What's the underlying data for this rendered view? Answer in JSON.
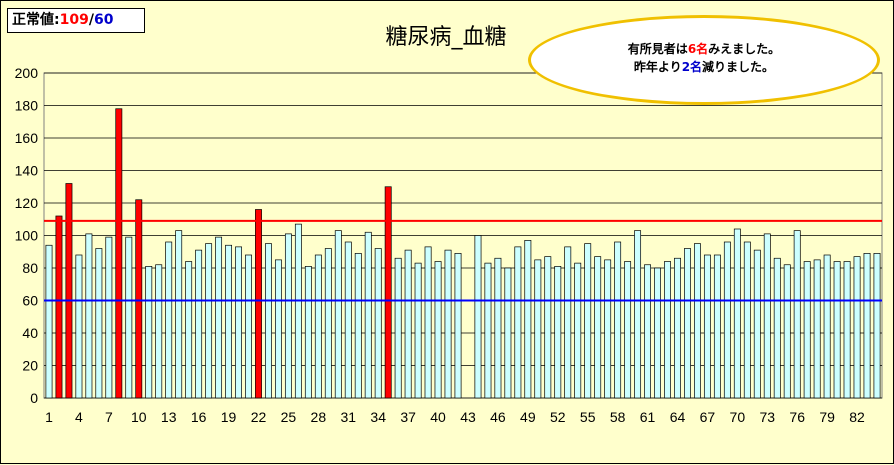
{
  "legend_box": {
    "label": "正常値:",
    "high": "109",
    "separator": "/",
    "low": "60"
  },
  "callout": {
    "line1_pre": "有所見者は",
    "line1_num": "6名",
    "line1_post": "みえました。",
    "line2_pre": "昨年より",
    "line2_num": "2名",
    "line2_post": "減りました。"
  },
  "colors": {
    "normal_bar": "#ccffff",
    "abnormal_bar": "#ff0000",
    "upper_line": "#ff0000",
    "lower_line": "#0000ff",
    "plot_bg": "#ffffcc"
  },
  "chart_data": {
    "type": "bar",
    "title": "糖尿病_血糖",
    "xlabel": "",
    "ylabel": "",
    "ylim": [
      0,
      200
    ],
    "y_ticks": [
      0,
      20,
      40,
      60,
      80,
      100,
      120,
      140,
      160,
      180,
      200
    ],
    "x_tick_labels": [
      "1",
      "4",
      "7",
      "10",
      "13",
      "16",
      "19",
      "22",
      "25",
      "28",
      "31",
      "34",
      "37",
      "40",
      "43",
      "46",
      "49",
      "52",
      "55",
      "58",
      "61",
      "64",
      "67",
      "70",
      "73",
      "76",
      "79",
      "82"
    ],
    "x": [
      1,
      2,
      3,
      4,
      5,
      6,
      7,
      8,
      9,
      10,
      11,
      12,
      13,
      14,
      15,
      16,
      17,
      18,
      19,
      20,
      21,
      22,
      23,
      24,
      25,
      26,
      27,
      28,
      29,
      30,
      31,
      32,
      33,
      34,
      35,
      36,
      37,
      38,
      39,
      40,
      41,
      42,
      43,
      44,
      45,
      46,
      47,
      48,
      49,
      50,
      51,
      52,
      53,
      54,
      55,
      56,
      57,
      58,
      59,
      60,
      61,
      62,
      63,
      64,
      65,
      66,
      67,
      68,
      69,
      70,
      71,
      72,
      73,
      74,
      75,
      76,
      77,
      78,
      79,
      80,
      81,
      82,
      83,
      84
    ],
    "values": [
      94,
      112,
      132,
      88,
      101,
      92,
      99,
      178,
      99,
      122,
      81,
      82,
      96,
      103,
      84,
      91,
      95,
      99,
      94,
      93,
      88,
      116,
      95,
      85,
      101,
      107,
      81,
      88,
      92,
      103,
      96,
      89,
      102,
      92,
      130,
      86,
      91,
      83,
      93,
      84,
      91,
      89,
      null,
      100,
      83,
      86,
      80,
      93,
      97,
      85,
      87,
      81,
      93,
      83,
      95,
      87,
      85,
      96,
      84,
      103,
      82,
      80,
      84,
      86,
      92,
      95,
      88,
      88,
      96,
      104,
      96,
      91,
      101,
      86,
      82,
      103,
      84,
      85,
      88,
      84,
      84,
      87,
      89,
      89
    ],
    "abnormal_indices": [
      1,
      2,
      7,
      9,
      21,
      34
    ],
    "reference_lines": [
      {
        "name": "upper",
        "value": 109
      },
      {
        "name": "lower",
        "value": 60
      }
    ],
    "grid": true
  }
}
